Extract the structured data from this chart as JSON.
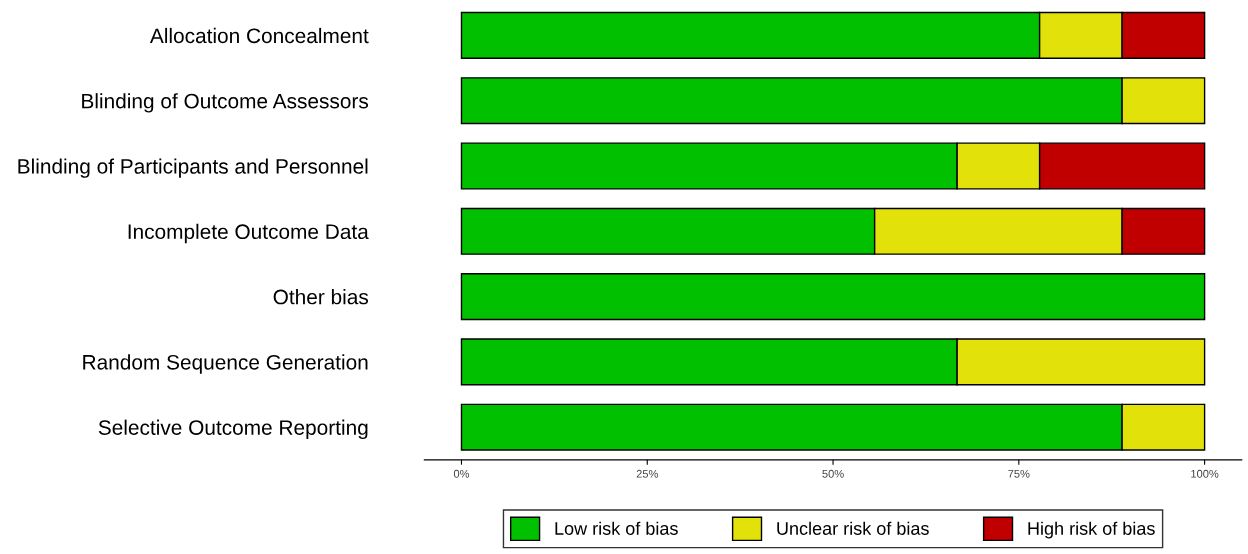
{
  "chart_data": {
    "type": "bar",
    "orientation": "horizontal",
    "stacked": true,
    "categories": [
      "Allocation Concealment",
      "Blinding of Outcome Assessors",
      "Blinding of Participants and Personnel",
      "Incomplete Outcome Data",
      "Other bias",
      "Random Sequence Generation",
      "Selective Outcome Reporting"
    ],
    "series": [
      {
        "name": "Low risk of bias",
        "color": "#00c000",
        "values": [
          77.8,
          88.9,
          66.7,
          55.6,
          100,
          66.7,
          88.9
        ]
      },
      {
        "name": "Unclear risk of bias",
        "color": "#e2e20a",
        "values": [
          11.1,
          11.1,
          11.1,
          33.3,
          null,
          33.3,
          11.1
        ]
      },
      {
        "name": "High risk of bias",
        "color": "#c00000",
        "values": [
          11.1,
          null,
          22.2,
          11.1,
          null,
          null,
          null
        ]
      }
    ],
    "xlim": [
      -5,
      105
    ],
    "xticks": [
      {
        "value": 0,
        "label": "0%"
      },
      {
        "value": 25,
        "label": "25%"
      },
      {
        "value": 50,
        "label": "50%"
      },
      {
        "value": 75,
        "label": "75%"
      },
      {
        "value": 100,
        "label": "100%"
      }
    ],
    "legend": "bottom",
    "grid": false
  }
}
